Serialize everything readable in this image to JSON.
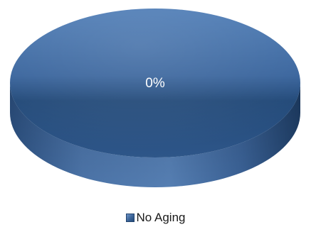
{
  "chart_data": {
    "type": "pie",
    "style": "3d",
    "categories": [
      "No Aging"
    ],
    "values": [
      100
    ],
    "data_labels": [
      "0%"
    ],
    "legend_position": "bottom",
    "colors": {
      "slice_top": "#4a76ad",
      "slice_mid": "#28507f",
      "slice_side": "#3f679b",
      "legend_swatch": "#3b6498"
    }
  }
}
